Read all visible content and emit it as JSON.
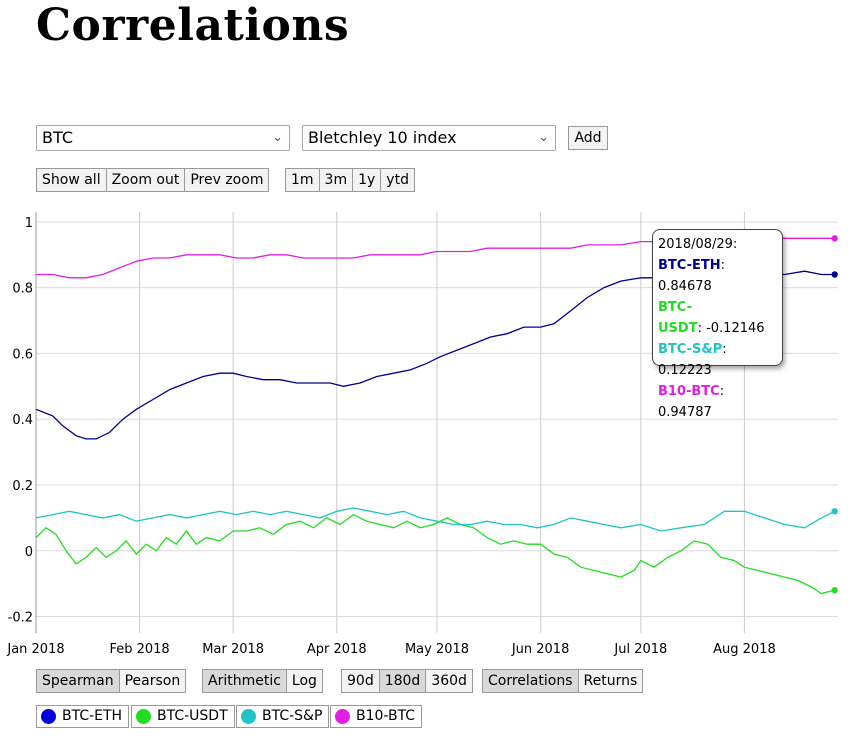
{
  "title": "Correlations",
  "selectors": {
    "asset_a": "BTC",
    "asset_b": "Bletchley 10 index",
    "add_label": "Add"
  },
  "zoom_buttons": [
    "Show all",
    "Zoom out",
    "Prev zoom"
  ],
  "range_buttons": [
    "1m",
    "3m",
    "1y",
    "ytd"
  ],
  "method_buttons": {
    "options": [
      "Spearman",
      "Pearson"
    ],
    "active": "Spearman"
  },
  "scale_buttons": {
    "options": [
      "Arithmetic",
      "Log"
    ],
    "active": "Arithmetic"
  },
  "window_buttons": {
    "options": [
      "90d",
      "180d",
      "360d"
    ],
    "active": "180d"
  },
  "mode_buttons": {
    "options": [
      "Correlations",
      "Returns"
    ],
    "active": "Correlations"
  },
  "tooltip": {
    "date": "2018/08/29:",
    "rows": [
      {
        "label": "BTC-ETH",
        "value": ": 0.84678",
        "color": "#00008b"
      },
      {
        "label": "BTC-",
        "value": "",
        "color": "#22dd22"
      },
      {
        "label": "USDT",
        "value": ": -0.12146",
        "color": "#22dd22"
      },
      {
        "label": "BTC-S&P",
        "value": ": 0.12223",
        "color": "#20c4c4"
      },
      {
        "label": "B10-BTC",
        "value": ": 0.94787",
        "color": "#e020e0"
      }
    ]
  },
  "legend": [
    {
      "label": "BTC-ETH",
      "color": "#0000dd"
    },
    {
      "label": "BTC-USDT",
      "color": "#22dd22"
    },
    {
      "label": "BTC-S&P",
      "color": "#20c4c4"
    },
    {
      "label": "B10-BTC",
      "color": "#e020e0"
    }
  ],
  "chart_data": {
    "type": "line",
    "title": "",
    "xlabel": "",
    "ylabel": "",
    "x_ticks": [
      "Jan 2018",
      "Feb 2018",
      "Mar 2018",
      "Apr 2018",
      "May 2018",
      "Jun 2018",
      "Jul 2018",
      "Aug 2018"
    ],
    "x_tick_days": [
      0,
      31,
      59,
      90,
      120,
      151,
      181,
      212
    ],
    "x_range_days": [
      0,
      240
    ],
    "ylim": [
      -0.25,
      1.03
    ],
    "y_ticks": [
      -0.2,
      0,
      0.2,
      0.4,
      0.6,
      0.8,
      1
    ],
    "y_tick_labels": [
      "-0.2",
      "0",
      "0.2",
      "0.4",
      "0.6",
      "0.8",
      "1"
    ],
    "grid": true,
    "series": [
      {
        "name": "BTC-ETH",
        "color": "#00008b",
        "x": [
          0,
          5,
          8,
          12,
          15,
          18,
          22,
          26,
          30,
          35,
          40,
          45,
          50,
          55,
          59,
          63,
          68,
          73,
          78,
          83,
          88,
          92,
          97,
          102,
          107,
          112,
          117,
          121,
          126,
          131,
          136,
          141,
          146,
          151,
          155,
          160,
          165,
          170,
          175,
          181,
          187,
          193,
          200,
          206,
          212,
          218,
          224,
          230,
          235,
          239
        ],
        "values": [
          0.43,
          0.41,
          0.38,
          0.35,
          0.34,
          0.34,
          0.36,
          0.4,
          0.43,
          0.46,
          0.49,
          0.51,
          0.53,
          0.54,
          0.54,
          0.53,
          0.52,
          0.52,
          0.51,
          0.51,
          0.51,
          0.5,
          0.51,
          0.53,
          0.54,
          0.55,
          0.57,
          0.59,
          0.61,
          0.63,
          0.65,
          0.66,
          0.68,
          0.68,
          0.69,
          0.73,
          0.77,
          0.8,
          0.82,
          0.83,
          0.83,
          0.84,
          0.84,
          0.85,
          0.84,
          0.84,
          0.84,
          0.85,
          0.84,
          0.84
        ]
      },
      {
        "name": "BTC-USDT",
        "color": "#22dd22",
        "x": [
          0,
          3,
          6,
          9,
          12,
          15,
          18,
          21,
          24,
          27,
          30,
          33,
          36,
          39,
          42,
          45,
          48,
          51,
          55,
          59,
          63,
          67,
          71,
          75,
          79,
          83,
          87,
          91,
          95,
          99,
          103,
          107,
          111,
          115,
          119,
          123,
          127,
          131,
          135,
          139,
          143,
          147,
          151,
          155,
          159,
          163,
          167,
          171,
          175,
          179,
          181,
          185,
          189,
          193,
          197,
          201,
          205,
          209,
          212,
          216,
          220,
          224,
          228,
          232,
          235,
          239
        ],
        "values": [
          0.04,
          0.07,
          0.05,
          0.0,
          -0.04,
          -0.02,
          0.01,
          -0.02,
          0.0,
          0.03,
          -0.01,
          0.02,
          0.0,
          0.04,
          0.02,
          0.06,
          0.02,
          0.04,
          0.03,
          0.06,
          0.06,
          0.07,
          0.05,
          0.08,
          0.09,
          0.07,
          0.1,
          0.08,
          0.11,
          0.09,
          0.08,
          0.07,
          0.09,
          0.07,
          0.08,
          0.1,
          0.08,
          0.07,
          0.04,
          0.02,
          0.03,
          0.02,
          0.02,
          -0.01,
          -0.02,
          -0.05,
          -0.06,
          -0.07,
          -0.08,
          -0.06,
          -0.03,
          -0.05,
          -0.02,
          0.0,
          0.03,
          0.02,
          -0.02,
          -0.03,
          -0.05,
          -0.06,
          -0.07,
          -0.08,
          -0.09,
          -0.11,
          -0.13,
          -0.12
        ]
      },
      {
        "name": "BTC-S&P",
        "color": "#20c4c4",
        "x": [
          0,
          5,
          10,
          15,
          20,
          25,
          30,
          35,
          40,
          45,
          50,
          55,
          60,
          65,
          70,
          75,
          80,
          85,
          90,
          95,
          100,
          105,
          110,
          115,
          120,
          125,
          130,
          135,
          140,
          145,
          150,
          155,
          160,
          165,
          170,
          175,
          181,
          187,
          193,
          200,
          206,
          212,
          218,
          224,
          230,
          235,
          239
        ],
        "values": [
          0.1,
          0.11,
          0.12,
          0.11,
          0.1,
          0.11,
          0.09,
          0.1,
          0.11,
          0.1,
          0.11,
          0.12,
          0.11,
          0.12,
          0.11,
          0.12,
          0.11,
          0.1,
          0.12,
          0.13,
          0.12,
          0.11,
          0.12,
          0.1,
          0.09,
          0.08,
          0.08,
          0.09,
          0.08,
          0.08,
          0.07,
          0.08,
          0.1,
          0.09,
          0.08,
          0.07,
          0.08,
          0.06,
          0.07,
          0.08,
          0.12,
          0.12,
          0.1,
          0.08,
          0.07,
          0.1,
          0.12
        ]
      },
      {
        "name": "B10-BTC",
        "color": "#e020e0",
        "x": [
          0,
          5,
          10,
          15,
          20,
          25,
          30,
          35,
          40,
          45,
          50,
          55,
          60,
          65,
          70,
          75,
          80,
          85,
          90,
          95,
          100,
          105,
          110,
          115,
          120,
          125,
          130,
          135,
          140,
          145,
          150,
          155,
          160,
          165,
          170,
          175,
          181,
          187,
          193,
          200,
          206,
          212,
          218,
          224,
          230,
          235,
          239
        ],
        "values": [
          0.84,
          0.84,
          0.83,
          0.83,
          0.84,
          0.86,
          0.88,
          0.89,
          0.89,
          0.9,
          0.9,
          0.9,
          0.89,
          0.89,
          0.9,
          0.9,
          0.89,
          0.89,
          0.89,
          0.89,
          0.9,
          0.9,
          0.9,
          0.9,
          0.91,
          0.91,
          0.91,
          0.92,
          0.92,
          0.92,
          0.92,
          0.92,
          0.92,
          0.93,
          0.93,
          0.93,
          0.94,
          0.94,
          0.94,
          0.94,
          0.95,
          0.95,
          0.95,
          0.95,
          0.95,
          0.95,
          0.95
        ]
      }
    ]
  }
}
